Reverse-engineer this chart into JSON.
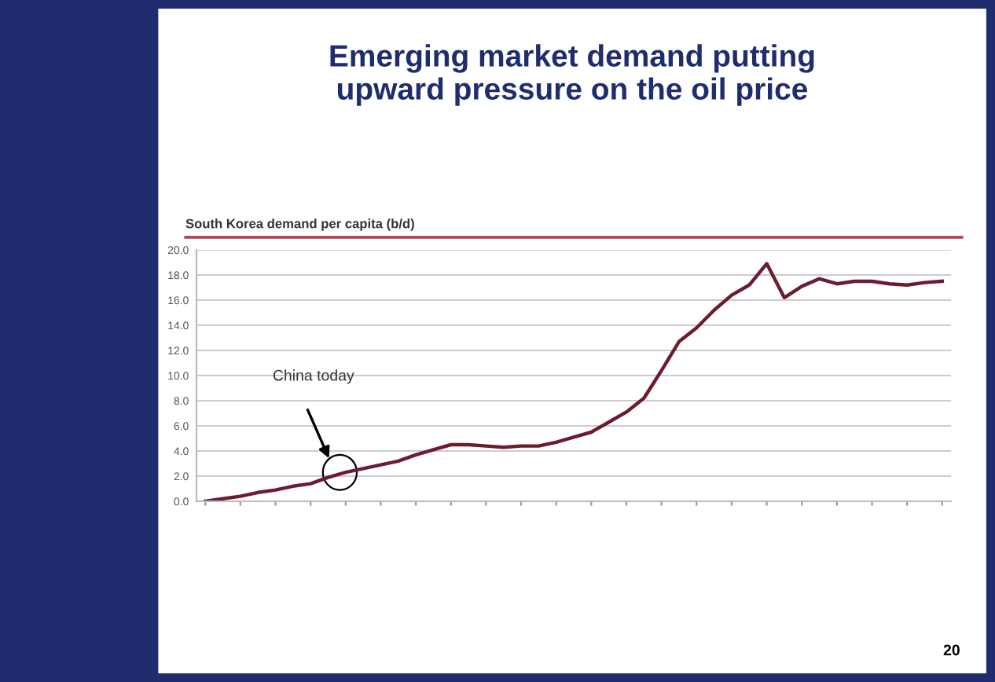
{
  "chart_data": {
    "type": "line",
    "title": "Emerging market demand putting upward pressure on the oil price",
    "subtitle": "South Korea demand per capita (b/d)",
    "categories": [
      null,
      null,
      null,
      null,
      null,
      null,
      null,
      null,
      null,
      null,
      null,
      null,
      null,
      null,
      null,
      null,
      null,
      null,
      null,
      null,
      null,
      null,
      null,
      null,
      null,
      null,
      null,
      null,
      null,
      null,
      null,
      null,
      null,
      null,
      null,
      null,
      null,
      null,
      null,
      null,
      null,
      null,
      null
    ],
    "series": [
      {
        "color": "#6b1d2e",
        "values": [
          0.0,
          0.2,
          0.4,
          0.7,
          0.9,
          1.2,
          1.4,
          1.9,
          2.3,
          2.6,
          2.9,
          3.2,
          3.7,
          4.1,
          4.5,
          4.5,
          4.4,
          4.3,
          4.4,
          4.4,
          4.7,
          5.1,
          5.5,
          6.3,
          7.1,
          8.2,
          10.4,
          12.7,
          13.8,
          15.2,
          16.4,
          17.2,
          18.9,
          16.2,
          17.1,
          17.7,
          17.3,
          17.5,
          17.5,
          17.3,
          17.2,
          17.4,
          17.5
        ]
      }
    ],
    "ylim": [
      0,
      20
    ],
    "yticks": [
      {
        "value": 0,
        "label": "0.0"
      },
      {
        "value": 2,
        "label": "2.0"
      },
      {
        "value": 4,
        "label": "4.0"
      },
      {
        "value": 6,
        "label": "6.0"
      },
      {
        "value": 8,
        "label": "8.0"
      },
      {
        "value": 10,
        "label": "10.0"
      },
      {
        "value": 12,
        "label": "12.0"
      },
      {
        "value": 14,
        "label": "14.0"
      },
      {
        "value": 16,
        "label": "16.0"
      },
      {
        "value": 18,
        "label": "18.0"
      },
      {
        "value": 20,
        "label": "20.0"
      }
    ],
    "grid": "y",
    "legend": false,
    "marker": "none",
    "line_style": "solid",
    "annotations": [
      "China today",
      "20"
    ]
  }
}
